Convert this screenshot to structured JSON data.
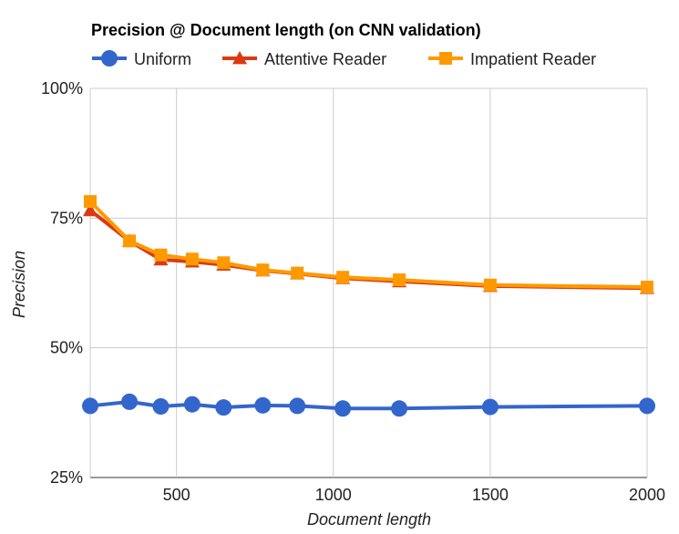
{
  "chart_data": {
    "type": "line",
    "title": "Precision @ Document length (on CNN validation)",
    "xlabel": "Document length",
    "ylabel": "Precision",
    "xlim": [
      225,
      2000
    ],
    "ylim": [
      25,
      100
    ],
    "x_ticks": [
      500,
      1000,
      1500,
      2000
    ],
    "x_tick_labels": [
      "500",
      "1000",
      "1500",
      "2000"
    ],
    "y_ticks": [
      25,
      50,
      75,
      100
    ],
    "y_tick_labels": [
      "25%",
      "50%",
      "75%",
      "100%"
    ],
    "grid": true,
    "legend_position": "top-left",
    "series": [
      {
        "name": "Uniform",
        "color": "#3366cc",
        "marker": "circle",
        "x": [
          225,
          350,
          450,
          550,
          650,
          775,
          885,
          1030,
          1210,
          1500,
          2000
        ],
        "y": [
          38.8,
          39.6,
          38.7,
          39.1,
          38.5,
          38.9,
          38.8,
          38.3,
          38.3,
          38.6,
          38.8
        ]
      },
      {
        "name": "Attentive Reader",
        "color": "#dc3912",
        "marker": "triangle",
        "x": [
          225,
          350,
          450,
          550,
          650,
          775,
          885,
          1030,
          1210,
          1500,
          2000
        ],
        "y": [
          76.5,
          70.6,
          67.0,
          66.6,
          66.0,
          64.9,
          64.3,
          63.4,
          62.8,
          61.9,
          61.5
        ]
      },
      {
        "name": "Impatient Reader",
        "color": "#ff9900",
        "marker": "square",
        "x": [
          225,
          350,
          450,
          550,
          650,
          775,
          885,
          1030,
          1210,
          1500,
          2000
        ],
        "y": [
          78.2,
          70.6,
          67.9,
          67.1,
          66.4,
          65.0,
          64.4,
          63.6,
          63.1,
          62.1,
          61.7
        ]
      }
    ]
  }
}
